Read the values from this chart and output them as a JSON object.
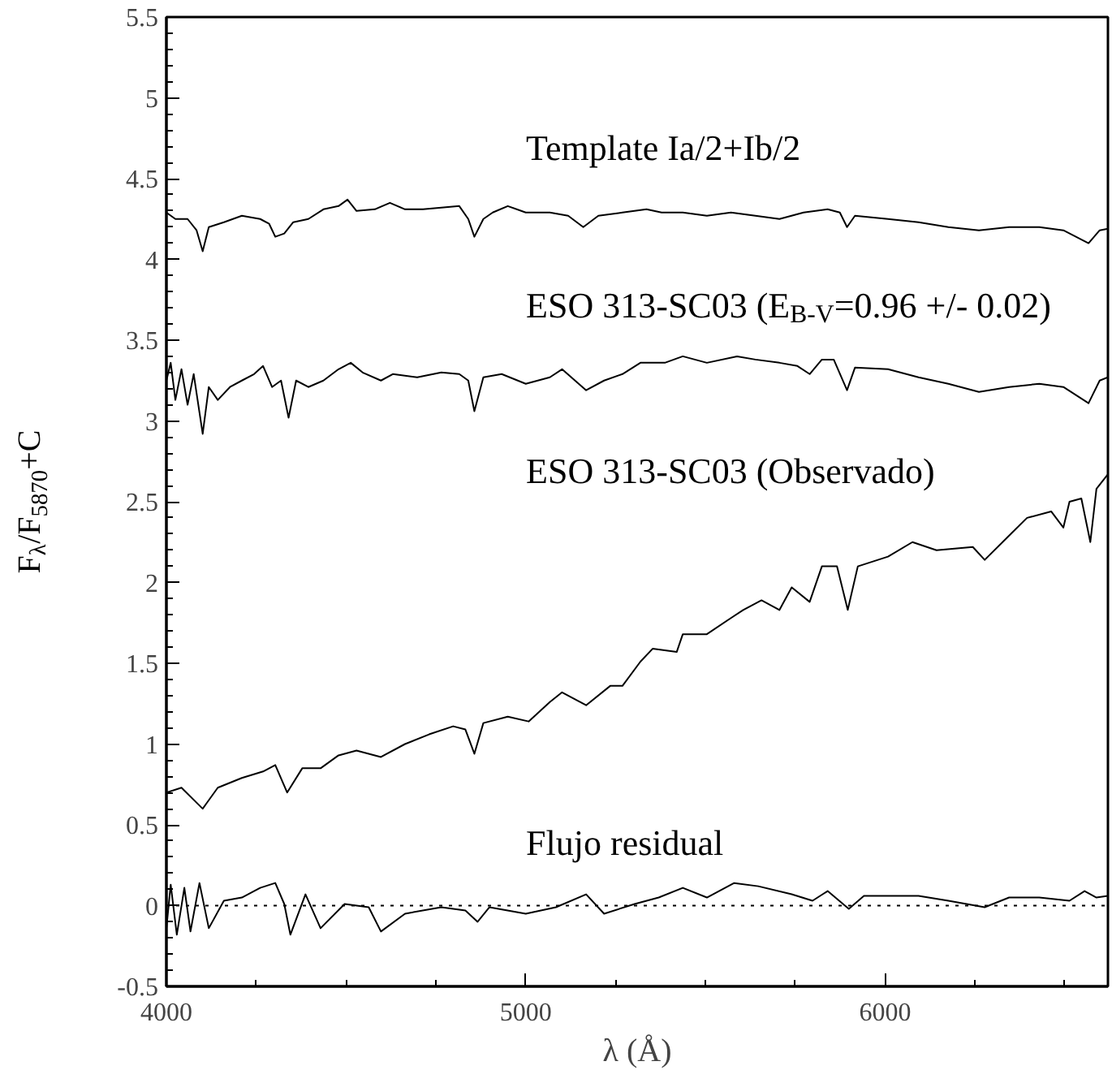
{
  "chart_data": {
    "type": "line",
    "xlabel": "λ (Å)",
    "ylabel": "F$_{λ}$/F$_{5870}$+C",
    "xlim": [
      4000,
      6620
    ],
    "ylim": [
      -0.5,
      5.5
    ],
    "xticks": [
      4000,
      5000,
      6000
    ],
    "yticks": [
      -0.5,
      0,
      0.5,
      1,
      1.5,
      2,
      2.5,
      3,
      3.5,
      4,
      4.5,
      5,
      5.5
    ],
    "ref_lines": [
      {
        "axis": "y",
        "value": 0,
        "line_style": "dotted",
        "color": "#000000"
      }
    ],
    "series": [
      {
        "name": "Template Ia/2+Ib/2",
        "color": "#000000",
        "x": [
          4000,
          4025,
          4059,
          4084,
          4101,
          4118,
          4160,
          4210,
          4261,
          4286,
          4303,
          4328,
          4353,
          4395,
          4437,
          4479,
          4504,
          4529,
          4580,
          4622,
          4664,
          4714,
          4765,
          4815,
          4840,
          4857,
          4882,
          4908,
          4950,
          5000,
          5067,
          5118,
          5160,
          5202,
          5269,
          5336,
          5378,
          5437,
          5504,
          5571,
          5639,
          5706,
          5773,
          5840,
          5874,
          5894,
          5916,
          6008,
          6093,
          6176,
          6261,
          6345,
          6429,
          6496,
          6566,
          6597,
          6620
        ],
        "values": [
          4.29,
          4.25,
          4.25,
          4.18,
          4.05,
          4.2,
          4.23,
          4.27,
          4.25,
          4.22,
          4.14,
          4.16,
          4.23,
          4.25,
          4.31,
          4.33,
          4.37,
          4.3,
          4.31,
          4.35,
          4.31,
          4.31,
          4.32,
          4.33,
          4.25,
          4.14,
          4.25,
          4.29,
          4.33,
          4.29,
          4.29,
          4.27,
          4.2,
          4.27,
          4.29,
          4.31,
          4.29,
          4.29,
          4.27,
          4.29,
          4.27,
          4.25,
          4.29,
          4.31,
          4.29,
          4.2,
          4.27,
          4.25,
          4.23,
          4.2,
          4.18,
          4.2,
          4.2,
          4.18,
          4.1,
          4.18,
          4.19
        ]
      },
      {
        "name": "ESO 313-SC03 (E$_{B-V}$=0.96 +/- 0.02)",
        "color": "#000000",
        "x": [
          4000,
          4012,
          4025,
          4042,
          4059,
          4076,
          4101,
          4118,
          4143,
          4177,
          4210,
          4244,
          4269,
          4294,
          4319,
          4340,
          4361,
          4395,
          4437,
          4479,
          4513,
          4546,
          4597,
          4630,
          4698,
          4765,
          4815,
          4840,
          4857,
          4882,
          4933,
          5000,
          5067,
          5101,
          5168,
          5218,
          5269,
          5319,
          5387,
          5437,
          5504,
          5588,
          5639,
          5706,
          5756,
          5790,
          5824,
          5857,
          5894,
          5916,
          6008,
          6093,
          6176,
          6261,
          6345,
          6429,
          6496,
          6566,
          6597,
          6620
        ],
        "values": [
          3.25,
          3.36,
          3.13,
          3.32,
          3.1,
          3.29,
          2.92,
          3.21,
          3.13,
          3.21,
          3.25,
          3.29,
          3.34,
          3.21,
          3.25,
          3.02,
          3.25,
          3.21,
          3.25,
          3.32,
          3.36,
          3.3,
          3.25,
          3.29,
          3.27,
          3.3,
          3.29,
          3.25,
          3.06,
          3.27,
          3.29,
          3.23,
          3.27,
          3.32,
          3.19,
          3.25,
          3.29,
          3.36,
          3.36,
          3.4,
          3.36,
          3.4,
          3.38,
          3.36,
          3.34,
          3.29,
          3.38,
          3.38,
          3.19,
          3.33,
          3.32,
          3.27,
          3.23,
          3.18,
          3.21,
          3.23,
          3.21,
          3.11,
          3.25,
          3.27
        ]
      },
      {
        "name": "ESO 313-SC03 (Observado)",
        "color": "#000000",
        "x": [
          4000,
          4042,
          4101,
          4143,
          4210,
          4269,
          4303,
          4336,
          4378,
          4429,
          4479,
          4529,
          4597,
          4664,
          4731,
          4798,
          4832,
          4857,
          4882,
          4950,
          5008,
          5067,
          5101,
          5168,
          5235,
          5269,
          5319,
          5353,
          5420,
          5437,
          5504,
          5571,
          5605,
          5656,
          5706,
          5740,
          5790,
          5824,
          5866,
          5896,
          5924,
          6008,
          6076,
          6143,
          6244,
          6277,
          6345,
          6395,
          6462,
          6496,
          6513,
          6546,
          6571,
          6588,
          6620
        ],
        "values": [
          0.7,
          0.73,
          0.6,
          0.73,
          0.79,
          0.83,
          0.87,
          0.7,
          0.85,
          0.85,
          0.93,
          0.96,
          0.92,
          1.0,
          1.06,
          1.11,
          1.09,
          0.94,
          1.13,
          1.17,
          1.14,
          1.26,
          1.32,
          1.24,
          1.36,
          1.36,
          1.51,
          1.59,
          1.57,
          1.68,
          1.68,
          1.78,
          1.83,
          1.89,
          1.83,
          1.97,
          1.88,
          2.1,
          2.1,
          1.83,
          2.1,
          2.16,
          2.25,
          2.2,
          2.22,
          2.14,
          2.29,
          2.4,
          2.44,
          2.34,
          2.5,
          2.52,
          2.25,
          2.58,
          2.67
        ]
      },
      {
        "name": "Flujo residual",
        "color": "#000000",
        "x": [
          4000,
          4012,
          4029,
          4050,
          4067,
          4092,
          4118,
          4160,
          4210,
          4261,
          4303,
          4328,
          4345,
          4387,
          4429,
          4496,
          4563,
          4597,
          4664,
          4765,
          4832,
          4866,
          4899,
          5000,
          5084,
          5168,
          5218,
          5303,
          5370,
          5437,
          5504,
          5580,
          5647,
          5740,
          5798,
          5840,
          5899,
          5941,
          6093,
          6176,
          6277,
          6345,
          6429,
          6513,
          6555,
          6588,
          6620
        ],
        "values": [
          -0.14,
          0.13,
          -0.18,
          0.11,
          -0.16,
          0.14,
          -0.14,
          0.03,
          0.05,
          0.11,
          0.14,
          0.01,
          -0.18,
          0.07,
          -0.14,
          0.01,
          -0.01,
          -0.16,
          -0.05,
          -0.01,
          -0.03,
          -0.1,
          -0.01,
          -0.05,
          -0.01,
          0.07,
          -0.05,
          0.01,
          0.05,
          0.11,
          0.05,
          0.14,
          0.12,
          0.07,
          0.03,
          0.09,
          -0.02,
          0.06,
          0.06,
          0.03,
          -0.01,
          0.05,
          0.05,
          0.03,
          0.09,
          0.05,
          0.06
        ]
      }
    ]
  }
}
